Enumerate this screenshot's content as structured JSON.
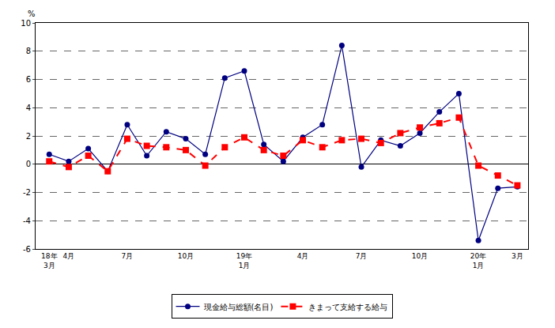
{
  "chart_data": {
    "type": "line",
    "y_label": "%",
    "categories": [
      "18年\n3月",
      "4月",
      null,
      null,
      "7月",
      null,
      null,
      "10月",
      null,
      null,
      "19年\n1月",
      null,
      null,
      "4月",
      null,
      null,
      "7月",
      null,
      null,
      "10月",
      null,
      null,
      "20年\n1月",
      null,
      "3月"
    ],
    "series": [
      {
        "name": "現金給与総額(名目)",
        "color": "#000080",
        "marker": "circle",
        "line_style": "solid",
        "values": [
          0.7,
          0.2,
          1.1,
          -0.5,
          2.8,
          0.6,
          2.3,
          1.8,
          0.7,
          6.1,
          6.6,
          1.4,
          0.2,
          1.9,
          2.8,
          8.4,
          -0.2,
          1.7,
          1.3,
          2.2,
          3.7,
          5.0,
          -5.4,
          -1.7,
          -1.6
        ]
      },
      {
        "name": "きまって支給する給与",
        "color": "#ff0000",
        "marker": "square",
        "line_style": "dash",
        "values": [
          0.2,
          -0.2,
          0.6,
          -0.5,
          1.8,
          1.3,
          1.2,
          1.0,
          -0.1,
          1.2,
          1.9,
          1.0,
          0.6,
          1.7,
          1.2,
          1.7,
          1.8,
          1.5,
          2.2,
          2.6,
          2.9,
          3.3,
          -0.1,
          -0.8,
          -1.5
        ]
      }
    ],
    "ylim": [
      -6,
      10
    ],
    "yticks": [
      -6,
      -4,
      -2,
      0,
      2,
      4,
      6,
      8,
      10
    ],
    "grid": true,
    "legend": "bottom"
  }
}
